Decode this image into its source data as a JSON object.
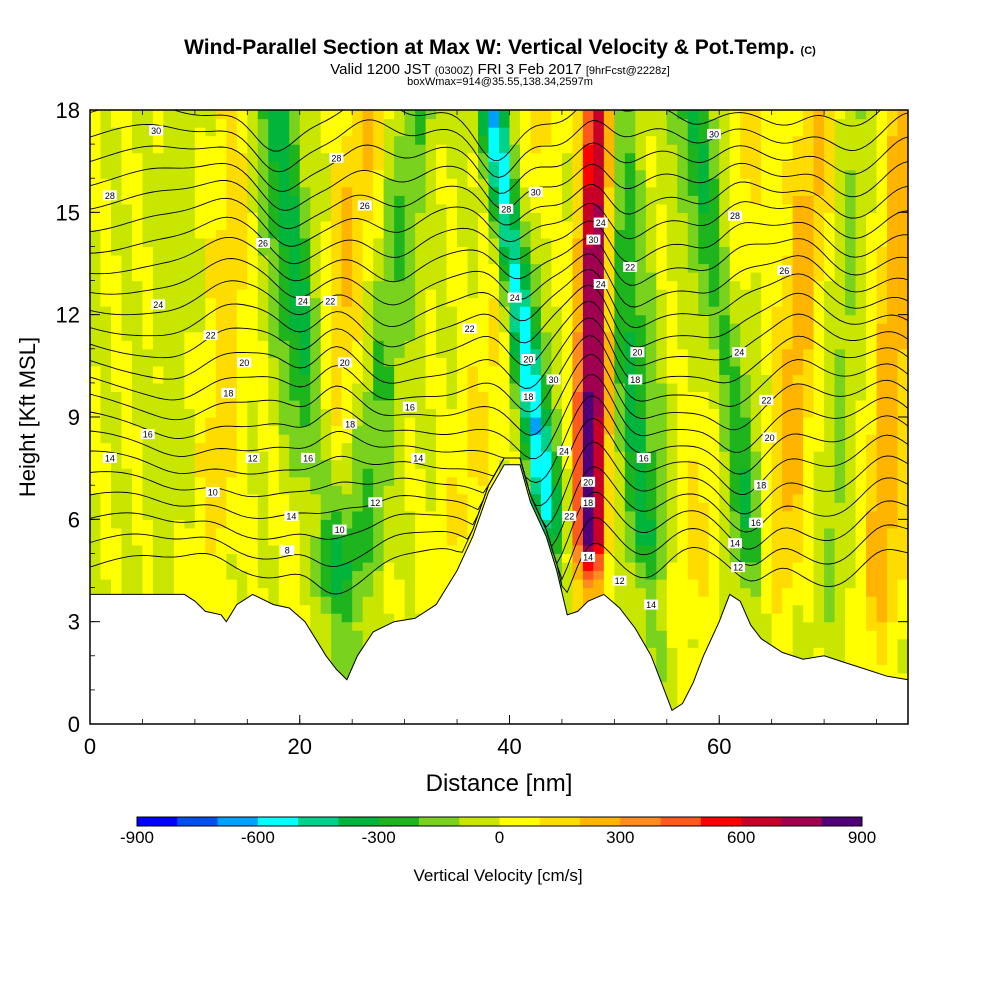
{
  "header": {
    "title": "Wind-Parallel Section at Max W: Vertical Velocity & Pot.Temp.",
    "title_mark": "(C)",
    "valid_prefix": "Valid 1200 JST",
    "valid_zulu": "(0300Z)",
    "valid_date": "FRI 3 Feb 2017",
    "forecast_info": "[9hrFcst@2228z]",
    "box_info": "boxWmax=914@35.55,138.34,2597m"
  },
  "chart_data": {
    "type": "contour",
    "xlabel": "Distance [nm]",
    "ylabel": "Height [Kft MSL]",
    "xlim": [
      0,
      78
    ],
    "ylim": [
      0,
      18
    ],
    "x_ticks": [
      0,
      20,
      40,
      60
    ],
    "y_ticks": [
      0,
      3,
      6,
      9,
      12,
      15,
      18
    ],
    "colorbar": {
      "label": "Vertical Velocity [cm/s]",
      "min": -900,
      "max": 900,
      "tick_values": [
        -900,
        -600,
        -300,
        0,
        300,
        600,
        900
      ],
      "colors": [
        "#0000ff",
        "#0050f0",
        "#00a0ff",
        "#00ffff",
        "#00d28c",
        "#00b43c",
        "#1eb41e",
        "#78d21e",
        "#c8e600",
        "#ffff00",
        "#ffdc00",
        "#ffb400",
        "#ff8c1e",
        "#ff5a1e",
        "#ff0000",
        "#c80028",
        "#a00050",
        "#500078"
      ]
    },
    "field_value_range_cm_s": [
      -914,
      914
    ],
    "max_w": {
      "value_cm_s": 914,
      "lat": 35.55,
      "lon": 138.34,
      "height_m": 2597
    },
    "updraft_bands": [
      {
        "x_base": 11.5,
        "y_base": 4.3,
        "x_top": 14,
        "y_top": 18,
        "w": 150
      },
      {
        "x_base": 20.5,
        "y_base": 4.0,
        "x_top": 26.5,
        "y_top": 18,
        "w": 220
      },
      {
        "x_base": 34,
        "y_base": 4.0,
        "x_top": 42.5,
        "y_top": 18,
        "w": 120
      },
      {
        "x_base": 47.5,
        "y_base": 3.6,
        "x_top": 48.5,
        "y_top": 18,
        "w": 900
      },
      {
        "x_base": 56.5,
        "y_base": 2.0,
        "x_top": 63,
        "y_top": 18,
        "w": 120
      },
      {
        "x_base": 65,
        "y_base": 2.5,
        "x_top": 69.5,
        "y_top": 18,
        "w": 240
      },
      {
        "x_base": 75,
        "y_base": 2.0,
        "x_top": 78,
        "y_top": 18,
        "w": 260
      }
    ],
    "downdraft_bands": [
      {
        "x_base": 7.5,
        "y_base": 4.5,
        "x_top": 9,
        "y_top": 18,
        "w": -60
      },
      {
        "x_base": 23.5,
        "y_base": 2.5,
        "x_top": 17.5,
        "y_top": 18,
        "w": -350
      },
      {
        "x_base": 25,
        "y_base": 3.0,
        "x_top": 31,
        "y_top": 18,
        "w": -200
      },
      {
        "x_base": 44.5,
        "y_base": 4.5,
        "x_top": 38.5,
        "y_top": 18,
        "w": -600
      },
      {
        "x_base": 53.5,
        "y_base": 3.5,
        "x_top": 49.5,
        "y_top": 18,
        "w": -320
      },
      {
        "x_base": 64,
        "y_base": 3.0,
        "x_top": 57.5,
        "y_top": 18,
        "w": -300
      },
      {
        "x_base": 70.5,
        "y_base": 2.0,
        "x_top": 73,
        "y_top": 18,
        "w": -120
      }
    ],
    "terrain_kft": {
      "x": [
        0,
        2,
        9,
        10,
        11,
        12.5,
        13,
        14,
        15.5,
        17.5,
        19,
        20.5,
        21.5,
        22.5,
        23.5,
        24.5,
        25.5,
        27,
        29,
        31,
        33,
        35,
        36.5,
        38,
        39.5,
        41,
        42,
        43.5,
        44.5,
        45.5,
        46.5,
        47.5,
        49,
        50.5,
        52,
        53.5,
        54.5,
        55.5,
        56.5,
        57.5,
        58.5,
        60,
        61,
        62,
        63,
        64,
        66,
        68,
        70,
        72,
        74,
        76,
        78
      ],
      "height": [
        3.8,
        3.8,
        3.8,
        3.6,
        3.3,
        3.2,
        3.0,
        3.5,
        3.8,
        3.5,
        3.4,
        3.0,
        2.5,
        2.0,
        1.6,
        1.3,
        2.0,
        2.7,
        3.0,
        3.1,
        3.5,
        4.5,
        5.5,
        6.8,
        7.6,
        7.6,
        6.5,
        5.5,
        4.5,
        3.2,
        3.3,
        3.6,
        3.8,
        3.4,
        2.8,
        2.0,
        1.2,
        0.4,
        0.6,
        1.2,
        2.0,
        3.0,
        3.8,
        3.6,
        2.9,
        2.5,
        2.1,
        1.9,
        2.0,
        1.8,
        1.6,
        1.4,
        1.3
      ]
    },
    "theta_contours": {
      "values": [
        8,
        9,
        10,
        11,
        12,
        13,
        14,
        15,
        16,
        17,
        18,
        19,
        20,
        21,
        22,
        23,
        24,
        25,
        26,
        27,
        28,
        29,
        30
      ],
      "labeled_values": [
        8,
        10,
        12,
        14,
        16,
        18,
        20,
        22,
        24,
        26,
        28,
        30
      ]
    },
    "contour_labels": [
      {
        "x": 6.3,
        "y": 17.4,
        "text": "30"
      },
      {
        "x": 1.9,
        "y": 15.5,
        "text": "28"
      },
      {
        "x": 6.5,
        "y": 12.3,
        "text": "24"
      },
      {
        "x": 23.5,
        "y": 16.6,
        "text": "28"
      },
      {
        "x": 26.2,
        "y": 15.2,
        "text": "26"
      },
      {
        "x": 16.5,
        "y": 14.1,
        "text": "26"
      },
      {
        "x": 11.5,
        "y": 11.4,
        "text": "22"
      },
      {
        "x": 14.7,
        "y": 10.6,
        "text": "20"
      },
      {
        "x": 13.2,
        "y": 9.7,
        "text": "18"
      },
      {
        "x": 5.5,
        "y": 8.5,
        "text": "16"
      },
      {
        "x": 1.9,
        "y": 7.8,
        "text": "14"
      },
      {
        "x": 15.5,
        "y": 7.8,
        "text": "12"
      },
      {
        "x": 11.7,
        "y": 6.8,
        "text": "10"
      },
      {
        "x": 20.3,
        "y": 12.4,
        "text": "24"
      },
      {
        "x": 22.9,
        "y": 12.4,
        "text": "22"
      },
      {
        "x": 24.3,
        "y": 10.6,
        "text": "20"
      },
      {
        "x": 24.8,
        "y": 8.8,
        "text": "18"
      },
      {
        "x": 20.8,
        "y": 7.8,
        "text": "16"
      },
      {
        "x": 19.2,
        "y": 6.1,
        "text": "14"
      },
      {
        "x": 23.8,
        "y": 5.7,
        "text": "10"
      },
      {
        "x": 18.8,
        "y": 5.1,
        "text": "8"
      },
      {
        "x": 30.5,
        "y": 9.3,
        "text": "16"
      },
      {
        "x": 31.3,
        "y": 7.8,
        "text": "14"
      },
      {
        "x": 27.2,
        "y": 6.5,
        "text": "12"
      },
      {
        "x": 39.7,
        "y": 15.1,
        "text": "28"
      },
      {
        "x": 42.5,
        "y": 15.6,
        "text": "30"
      },
      {
        "x": 40.5,
        "y": 12.5,
        "text": "24"
      },
      {
        "x": 36.2,
        "y": 11.6,
        "text": "22"
      },
      {
        "x": 41.8,
        "y": 10.7,
        "text": "20"
      },
      {
        "x": 41.8,
        "y": 9.6,
        "text": "18"
      },
      {
        "x": 44.2,
        "y": 10.1,
        "text": "30"
      },
      {
        "x": 45.2,
        "y": 8.0,
        "text": "24"
      },
      {
        "x": 45.7,
        "y": 6.1,
        "text": "22"
      },
      {
        "x": 47.5,
        "y": 7.1,
        "text": "20"
      },
      {
        "x": 47.5,
        "y": 6.5,
        "text": "18"
      },
      {
        "x": 47.5,
        "y": 4.9,
        "text": "14"
      },
      {
        "x": 50.5,
        "y": 4.2,
        "text": "12"
      },
      {
        "x": 53.5,
        "y": 3.5,
        "text": "14"
      },
      {
        "x": 48.7,
        "y": 14.7,
        "text": "24"
      },
      {
        "x": 48.0,
        "y": 14.2,
        "text": "30"
      },
      {
        "x": 48.7,
        "y": 12.9,
        "text": "24"
      },
      {
        "x": 51.5,
        "y": 13.4,
        "text": "22"
      },
      {
        "x": 52.2,
        "y": 10.9,
        "text": "20"
      },
      {
        "x": 52.0,
        "y": 10.1,
        "text": "18"
      },
      {
        "x": 52.8,
        "y": 7.8,
        "text": "16"
      },
      {
        "x": 59.5,
        "y": 17.3,
        "text": "30"
      },
      {
        "x": 61.5,
        "y": 14.9,
        "text": "28"
      },
      {
        "x": 66.2,
        "y": 13.3,
        "text": "26"
      },
      {
        "x": 61.9,
        "y": 10.9,
        "text": "24"
      },
      {
        "x": 64.5,
        "y": 9.5,
        "text": "22"
      },
      {
        "x": 64.8,
        "y": 8.4,
        "text": "20"
      },
      {
        "x": 64.0,
        "y": 7.0,
        "text": "18"
      },
      {
        "x": 63.5,
        "y": 5.9,
        "text": "16"
      },
      {
        "x": 61.5,
        "y": 5.3,
        "text": "14"
      },
      {
        "x": 61.8,
        "y": 4.6,
        "text": "12"
      }
    ]
  }
}
